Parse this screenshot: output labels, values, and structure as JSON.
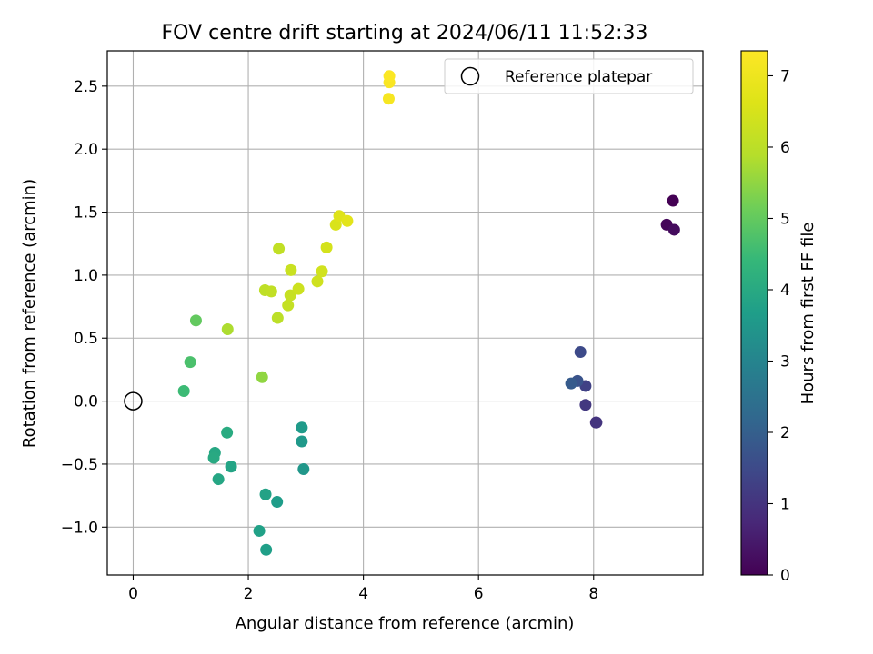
{
  "chart_data": {
    "type": "scatter",
    "title": "FOV centre drift starting at 2024/06/11 11:52:33",
    "xlabel": "Angular distance from reference (arcmin)",
    "ylabel": "Rotation from reference (arcmin)",
    "xlim": [
      -0.45,
      9.9
    ],
    "ylim": [
      -1.38,
      2.78
    ],
    "xticks": [
      0,
      2,
      4,
      6,
      8
    ],
    "xtick_labels": [
      "0",
      "2",
      "4",
      "6",
      "8"
    ],
    "yticks": [
      -1.0,
      -0.5,
      0.0,
      0.5,
      1.0,
      1.5,
      2.0,
      2.5
    ],
    "ytick_labels": [
      "−1.0",
      "−0.5",
      "0.0",
      "0.5",
      "1.0",
      "1.5",
      "2.0",
      "2.5"
    ],
    "grid": true,
    "colormap": "viridis",
    "colorbar": {
      "label": "Hours from first FF file",
      "range": [
        0,
        7.35
      ],
      "ticks": [
        0,
        1,
        2,
        3,
        4,
        5,
        6,
        7
      ],
      "tick_labels": [
        "0",
        "1",
        "2",
        "3",
        "4",
        "5",
        "6",
        "7"
      ]
    },
    "reference": {
      "name": "Reference platepar",
      "x": 0.0,
      "y": 0.0
    },
    "legend": {
      "placement": "top-right",
      "entries": [
        "Reference platepar"
      ]
    },
    "points": [
      {
        "x": 9.38,
        "y": 1.59,
        "hours": 0.0
      },
      {
        "x": 9.27,
        "y": 1.4,
        "hours": 0.1
      },
      {
        "x": 9.4,
        "y": 1.36,
        "hours": 0.2
      },
      {
        "x": 8.04,
        "y": -0.17,
        "hours": 0.9
      },
      {
        "x": 8.05,
        "y": -0.17,
        "hours": 1.0
      },
      {
        "x": 7.86,
        "y": -0.03,
        "hours": 1.1
      },
      {
        "x": 7.86,
        "y": 0.12,
        "hours": 1.3
      },
      {
        "x": 7.77,
        "y": 0.39,
        "hours": 1.5
      },
      {
        "x": 7.72,
        "y": 0.16,
        "hours": 1.7
      },
      {
        "x": 7.61,
        "y": 0.14,
        "hours": 1.9
      },
      {
        "x": 2.96,
        "y": -0.54,
        "hours": 3.5
      },
      {
        "x": 2.93,
        "y": -0.32,
        "hours": 3.55
      },
      {
        "x": 2.93,
        "y": -0.21,
        "hours": 3.6
      },
      {
        "x": 2.5,
        "y": -0.8,
        "hours": 3.65
      },
      {
        "x": 2.31,
        "y": -1.18,
        "hours": 3.7
      },
      {
        "x": 2.19,
        "y": -1.03,
        "hours": 3.75
      },
      {
        "x": 2.3,
        "y": -0.74,
        "hours": 3.8
      },
      {
        "x": 1.7,
        "y": -0.52,
        "hours": 3.85
      },
      {
        "x": 1.48,
        "y": -0.62,
        "hours": 3.9
      },
      {
        "x": 1.42,
        "y": -0.41,
        "hours": 3.95
      },
      {
        "x": 1.4,
        "y": -0.45,
        "hours": 4.0
      },
      {
        "x": 1.63,
        "y": -0.25,
        "hours": 4.05
      },
      {
        "x": 0.88,
        "y": 0.08,
        "hours": 4.5
      },
      {
        "x": 0.99,
        "y": 0.31,
        "hours": 4.7
      },
      {
        "x": 1.09,
        "y": 0.64,
        "hours": 5.0
      },
      {
        "x": 2.24,
        "y": 0.19,
        "hours": 5.5
      },
      {
        "x": 1.64,
        "y": 0.57,
        "hours": 5.8
      },
      {
        "x": 2.51,
        "y": 0.66,
        "hours": 6.0
      },
      {
        "x": 2.29,
        "y": 0.88,
        "hours": 6.05
      },
      {
        "x": 2.4,
        "y": 0.87,
        "hours": 6.1
      },
      {
        "x": 2.53,
        "y": 1.21,
        "hours": 6.1
      },
      {
        "x": 2.69,
        "y": 0.76,
        "hours": 6.15
      },
      {
        "x": 2.73,
        "y": 0.84,
        "hours": 6.2
      },
      {
        "x": 2.74,
        "y": 1.04,
        "hours": 6.25
      },
      {
        "x": 2.87,
        "y": 0.89,
        "hours": 6.3
      },
      {
        "x": 3.2,
        "y": 0.95,
        "hours": 6.35
      },
      {
        "x": 3.28,
        "y": 1.03,
        "hours": 6.4
      },
      {
        "x": 3.36,
        "y": 1.22,
        "hours": 6.45
      },
      {
        "x": 3.52,
        "y": 1.4,
        "hours": 6.55
      },
      {
        "x": 3.58,
        "y": 1.47,
        "hours": 6.65
      },
      {
        "x": 3.72,
        "y": 1.43,
        "hours": 6.75
      },
      {
        "x": 4.44,
        "y": 2.4,
        "hours": 7.2
      },
      {
        "x": 4.45,
        "y": 2.53,
        "hours": 7.25
      },
      {
        "x": 4.45,
        "y": 2.58,
        "hours": 7.3
      }
    ]
  }
}
